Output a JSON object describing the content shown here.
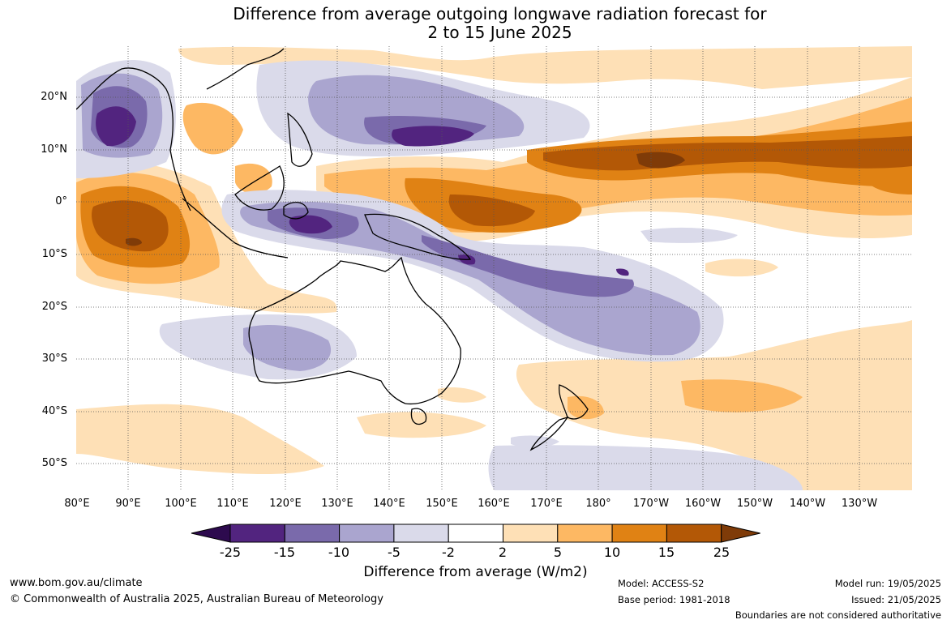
{
  "title": {
    "line1": "Difference from average outgoing longwave radiation forecast for",
    "line2": "2 to 15 June 2025"
  },
  "map": {
    "lat_labels": [
      "20°N",
      "10°N",
      "0°",
      "10°S",
      "20°S",
      "30°S",
      "40°S",
      "50°S"
    ],
    "lon_labels": [
      "80°E",
      "90°E",
      "100°E",
      "110°E",
      "120°E",
      "130°E",
      "140°E",
      "150°E",
      "160°E",
      "170°E",
      "180°",
      "170°W",
      "160°W",
      "150°W",
      "140°W",
      "130°W"
    ],
    "extent": {
      "lon_min": 80,
      "lon_max": 240,
      "lat_min": -55,
      "lat_max": 30
    }
  },
  "colorbar": {
    "label": "Difference from average (W/m2)",
    "ticks": [
      "-25",
      "-15",
      "-10",
      "-5",
      "-2",
      "2",
      "5",
      "10",
      "15",
      "25"
    ],
    "colors": [
      "#2d0a4e",
      "#52247f",
      "#7a6aab",
      "#aaa5cf",
      "#dadaea",
      "#ffffff",
      "#fee0b6",
      "#fdb863",
      "#e08214",
      "#b35806",
      "#7f3b08"
    ]
  },
  "footer": {
    "website": "www.bom.gov.au/climate",
    "copyright": "© Commonwealth of Australia 2025, Australian Bureau of Meteorology",
    "model": "Model: ACCESS-S2",
    "base_period": "Base period: 1981-2018",
    "model_run": "Model run: 19/05/2025",
    "issued": "Issued: 21/05/2025",
    "boundaries": "Boundaries are not considered authoritative"
  }
}
